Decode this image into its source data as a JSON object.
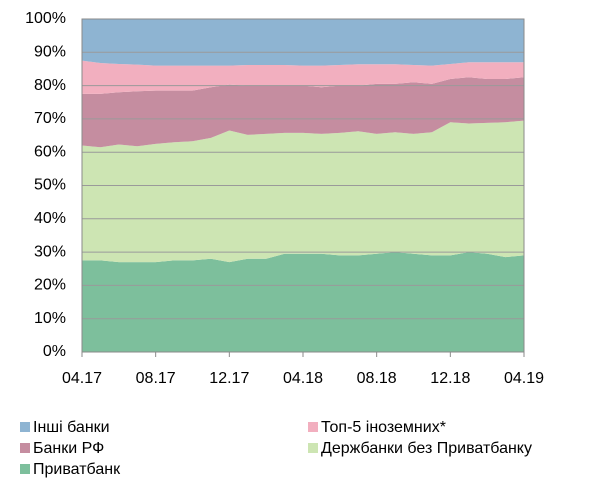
{
  "chart_data": {
    "type": "stacked_area",
    "categories": [
      "04.17",
      null,
      null,
      null,
      "08.17",
      null,
      null,
      null,
      "12.17",
      null,
      null,
      null,
      "04.18",
      null,
      null,
      null,
      "08.18",
      null,
      null,
      null,
      "12.18",
      null,
      null,
      null,
      "04.19"
    ],
    "series": [
      {
        "name": "Приватбанк",
        "color": "#7dbf9c",
        "values": [
          27.5,
          27.5,
          27,
          27,
          27,
          27.5,
          27.5,
          28,
          27,
          28,
          28,
          29.5,
          29.5,
          29.5,
          29,
          29,
          29.5,
          30,
          29.5,
          29,
          29,
          30,
          29.5,
          28.5,
          29
        ]
      },
      {
        "name": "Держбанки без Приватбанку",
        "color": "#cde5b3",
        "values": [
          34.5,
          34,
          35.3,
          34.8,
          35.5,
          35.5,
          35.8,
          36.3,
          39.5,
          37.2,
          37.5,
          36.3,
          36.3,
          36,
          36.8,
          37.3,
          36,
          36,
          36,
          37,
          40,
          38.6,
          39.3,
          40.5,
          40.5
        ]
      },
      {
        "name": "Банки РФ",
        "color": "#c58da0",
        "values": [
          15.5,
          16,
          15.7,
          16.5,
          16,
          15.5,
          15.2,
          15.2,
          13.8,
          14.8,
          14.5,
          14.2,
          14.2,
          14,
          14.2,
          13.7,
          15,
          14.5,
          15.5,
          14.5,
          13,
          13.9,
          13.2,
          13,
          13
        ]
      },
      {
        "name": "Топ-5 іноземних*",
        "color": "#f2afbf",
        "values": [
          10,
          9.3,
          8.5,
          8,
          7.5,
          7.5,
          7.5,
          6.5,
          5.7,
          6.2,
          6.2,
          6.2,
          6,
          6.5,
          6.2,
          6.4,
          5.9,
          5.9,
          5.2,
          5.5,
          4.5,
          4.5,
          5,
          5,
          4.5
        ]
      },
      {
        "name": "Інші банки",
        "color": "#8eb4d2",
        "values": [
          12.5,
          13.2,
          13.5,
          13.7,
          14,
          14,
          14,
          14,
          14,
          13.8,
          13.8,
          13.8,
          14,
          14,
          13.8,
          13.6,
          13.6,
          13.6,
          13.8,
          14,
          13.5,
          13,
          13,
          13,
          13
        ]
      }
    ],
    "ylim": [
      0,
      100
    ],
    "yticks": [
      {
        "value": 0,
        "label": "0%"
      },
      {
        "value": 10,
        "label": "10%"
      },
      {
        "value": 20,
        "label": "20%"
      },
      {
        "value": 30,
        "label": "30%"
      },
      {
        "value": 40,
        "label": "40%"
      },
      {
        "value": 50,
        "label": "50%"
      },
      {
        "value": 60,
        "label": "60%"
      },
      {
        "value": 70,
        "label": "70%"
      },
      {
        "value": 80,
        "label": "80%"
      },
      {
        "value": 90,
        "label": "90%"
      },
      {
        "value": 100,
        "label": "100%"
      }
    ],
    "grid": true
  }
}
